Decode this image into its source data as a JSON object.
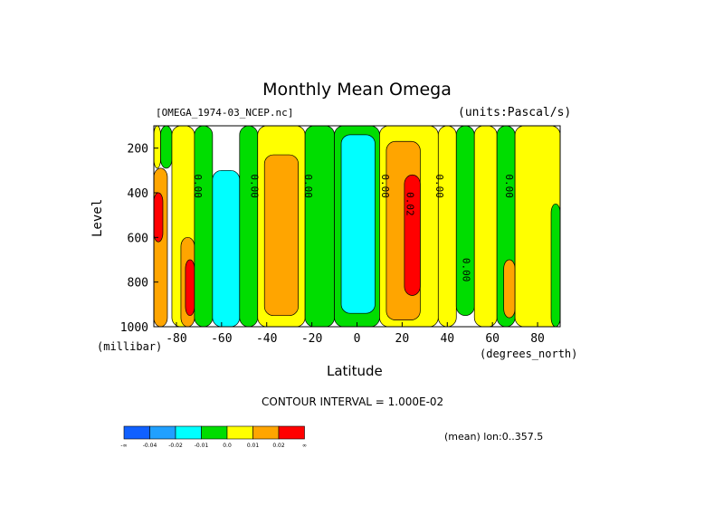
{
  "chart_data": {
    "type": "heatmap",
    "title": "Monthly Mean Omega",
    "subtitle_left": "[OMEGA_1974-03_NCEP.nc]",
    "subtitle_right": "(units:Pascal/s)",
    "xlabel": "Latitude",
    "ylabel": "Level",
    "x_unit_label": "(degrees_north)",
    "y_unit_label": "(millibar)",
    "xlim": [
      -90,
      90
    ],
    "ylim": [
      1000,
      100
    ],
    "x_ticks": [
      -80,
      -60,
      -40,
      -20,
      0,
      20,
      40,
      60,
      80
    ],
    "x_tick_labels": [
      "-80",
      "-60",
      "-40",
      "-20",
      "0",
      "20",
      "40",
      "60",
      "80"
    ],
    "y_ticks": [
      200,
      400,
      600,
      800,
      1000
    ],
    "y_tick_labels": [
      "200",
      "400",
      "600",
      "800",
      "1000"
    ],
    "contour_interval_text": "CONTOUR INTERVAL = 1.000E-02",
    "mean_text": "(mean) lon:0..357.5",
    "contour_labels": [
      {
        "text": "0.00",
        "lat": -72,
        "level": 370
      },
      {
        "text": "0.00",
        "lat": -47,
        "level": 370
      },
      {
        "text": "0.00",
        "lat": -23,
        "level": 370
      },
      {
        "text": "0.00",
        "lat": 11,
        "level": 370
      },
      {
        "text": "0.02",
        "lat": 22,
        "level": 450
      },
      {
        "text": "0.00",
        "lat": 35,
        "level": 370
      },
      {
        "text": "0.00",
        "lat": 47,
        "level": 745
      },
      {
        "text": "0.00",
        "lat": 66,
        "level": 370
      }
    ],
    "colorbar": {
      "colors": [
        "#1060ff",
        "#20a0ff",
        "#00ffff",
        "#00dd00",
        "#ffff00",
        "#ffa500",
        "#ff0000"
      ],
      "labels": [
        "-∞",
        "-0.04",
        "-0.02",
        "-0.01",
        "0.0",
        "0.01",
        "0.02",
        "∞"
      ]
    },
    "bands": [
      {
        "lat0": -90,
        "lat1": -87,
        "level0": 100,
        "level1": 290,
        "fill": "yellow"
      },
      {
        "lat0": -87,
        "lat1": -82,
        "level0": 100,
        "level1": 290,
        "fill": "green"
      },
      {
        "lat0": -82,
        "lat1": -72,
        "level0": 100,
        "level1": 1000,
        "fill": "yellow"
      },
      {
        "lat0": -90,
        "lat1": -84,
        "level0": 290,
        "level1": 1000,
        "fill": "orange"
      },
      {
        "lat0": -90,
        "lat1": -86,
        "level0": 400,
        "level1": 620,
        "fill": "red"
      },
      {
        "lat0": -78,
        "lat1": -72,
        "level0": 600,
        "level1": 1000,
        "fill": "orange"
      },
      {
        "lat0": -76,
        "lat1": -72,
        "level0": 700,
        "level1": 950,
        "fill": "red"
      },
      {
        "lat0": -72,
        "lat1": -64,
        "level0": 100,
        "level1": 1000,
        "fill": "green"
      },
      {
        "lat0": -64,
        "lat1": -52,
        "level0": 300,
        "level1": 1000,
        "fill": "cyan"
      },
      {
        "lat0": -52,
        "lat1": -44,
        "level0": 100,
        "level1": 1000,
        "fill": "green"
      },
      {
        "lat0": -44,
        "lat1": -23,
        "level0": 100,
        "level1": 1000,
        "fill": "yellow"
      },
      {
        "lat0": -41,
        "lat1": -26,
        "level0": 230,
        "level1": 950,
        "fill": "orange"
      },
      {
        "lat0": -23,
        "lat1": -10,
        "level0": 100,
        "level1": 1000,
        "fill": "green"
      },
      {
        "lat0": -10,
        "lat1": 10,
        "level0": 100,
        "level1": 1000,
        "fill": "green"
      },
      {
        "lat0": -7,
        "lat1": 8,
        "level0": 140,
        "level1": 940,
        "fill": "cyan"
      },
      {
        "lat0": 10,
        "lat1": 36,
        "level0": 100,
        "level1": 1000,
        "fill": "yellow"
      },
      {
        "lat0": 13,
        "lat1": 28,
        "level0": 170,
        "level1": 970,
        "fill": "orange"
      },
      {
        "lat0": 21,
        "lat1": 28,
        "level0": 320,
        "level1": 860,
        "fill": "red"
      },
      {
        "lat0": 36,
        "lat1": 44,
        "level0": 100,
        "level1": 1000,
        "fill": "yellow"
      },
      {
        "lat0": 44,
        "lat1": 52,
        "level0": 100,
        "level1": 950,
        "fill": "green"
      },
      {
        "lat0": 52,
        "lat1": 62,
        "level0": 100,
        "level1": 1000,
        "fill": "yellow"
      },
      {
        "lat0": 62,
        "lat1": 70,
        "level0": 100,
        "level1": 1000,
        "fill": "green"
      },
      {
        "lat0": 65,
        "lat1": 70,
        "level0": 700,
        "level1": 960,
        "fill": "orange"
      },
      {
        "lat0": 70,
        "lat1": 90,
        "level0": 100,
        "level1": 1000,
        "fill": "yellow"
      },
      {
        "lat0": 86,
        "lat1": 90,
        "level0": 450,
        "level1": 1000,
        "fill": "green"
      }
    ],
    "grid": false
  }
}
